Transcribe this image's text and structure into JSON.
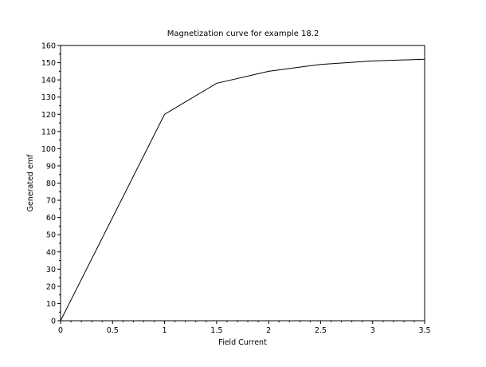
{
  "chart_data": {
    "type": "line",
    "title": "Magnetization curve for example 18.2",
    "xlabel": "Field Current",
    "ylabel": "Generated emf",
    "xlim": [
      0,
      3.5
    ],
    "ylim": [
      0,
      160
    ],
    "xticks": [
      "0",
      "0.5",
      "1",
      "1.5",
      "2",
      "2.5",
      "3",
      "3.5"
    ],
    "yticks": [
      "0",
      "10",
      "20",
      "30",
      "40",
      "50",
      "60",
      "70",
      "80",
      "90",
      "100",
      "110",
      "120",
      "130",
      "140",
      "150",
      "160"
    ],
    "grid": false,
    "legend": "none",
    "series": [
      {
        "x": [
          0,
          0.5,
          1.0,
          1.5,
          2.0,
          2.5,
          3.0,
          3.5
        ],
        "y": [
          0,
          60,
          120,
          138,
          145,
          149,
          151,
          152
        ],
        "color": "#000000"
      }
    ]
  }
}
